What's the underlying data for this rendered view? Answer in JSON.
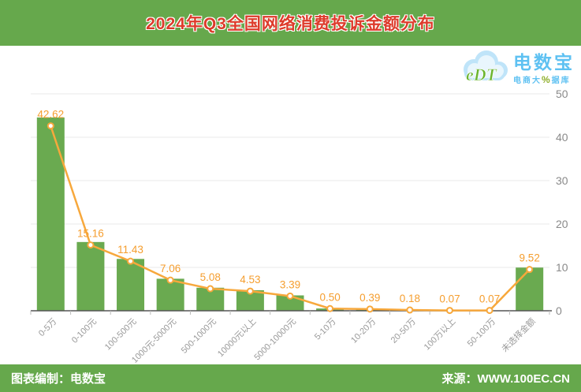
{
  "header": {
    "title": "2024年Q3全国网络消费投诉金额分布"
  },
  "logo": {
    "abbr": "eDT",
    "name": "电数宝",
    "subtitle_prefix": "电商大",
    "subtitle_percent": "%",
    "subtitle_suffix": "据库"
  },
  "footer": {
    "left": "图表编制：电数宝",
    "right": "来源：WWW.100EC.CN"
  },
  "colors": {
    "header_green": "#66a84c",
    "title_red": "#dd3b2b",
    "bar_green": "#6aaa50",
    "line_orange": "#f7a83c",
    "value_label_orange": "#f59e2f",
    "axis_text_gray": "#8a8a8a",
    "category_text_gray": "#9a9a9a",
    "grid_gray": "#e9e9e9",
    "axis_line_gray": "#555555",
    "logo_blue": "#5ec1f2",
    "logo_green": "#6cb52f"
  },
  "chart_data": {
    "type": "bar",
    "overlay_line": true,
    "title": "2024年Q3全国网络消费投诉金额分布",
    "categories": [
      "0-5万",
      "0-100元",
      "100-500元",
      "1000元-5000元",
      "500-1000元",
      "10000元以上",
      "5000-10000元",
      "5-10万",
      "10-20万",
      "20-50万",
      "100万以上",
      "50-100万",
      "未选择金额"
    ],
    "values": [
      42.62,
      15.16,
      11.43,
      7.06,
      5.08,
      4.53,
      3.39,
      0.5,
      0.39,
      0.18,
      0.07,
      0.07,
      9.52
    ],
    "value_labels": [
      "42.62",
      "15.16",
      "11.43",
      "7.06",
      "5.08",
      "4.53",
      "3.39",
      "0.50",
      "0.39",
      "0.18",
      "0.07",
      "0.07",
      "9.52"
    ],
    "xlabel": "",
    "ylabel": "",
    "yticks": [
      0,
      10,
      20,
      30,
      40,
      50
    ],
    "ylim": [
      0,
      50
    ],
    "grid": true,
    "legend": "none",
    "yaxis_position": "right"
  }
}
